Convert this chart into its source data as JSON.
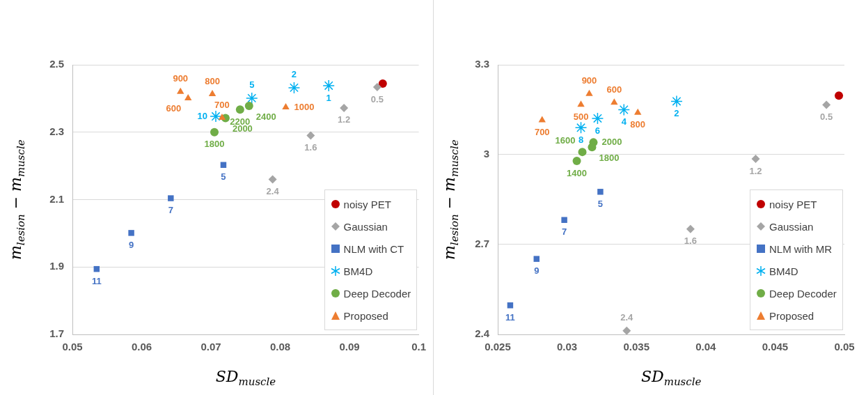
{
  "chart_data": [
    {
      "type": "scatter",
      "xlabel": "SD$_{muscle}$",
      "ylabel": "m$_{lesion}$ − m$_{muscle}$",
      "xlim": [
        0.05,
        0.1
      ],
      "xticks": [
        0.05,
        0.06,
        0.07,
        0.08,
        0.09,
        0.1
      ],
      "ylim": [
        1.7,
        2.5
      ],
      "yticks": [
        1.7,
        1.9,
        2.1,
        2.3,
        2.5
      ],
      "grid": "y",
      "legend": "bottom right",
      "series": [
        {
          "name": "noisy PET",
          "color": "#c00000",
          "marker": "circle",
          "x": [
            0.0948
          ],
          "values": [
            2.444
          ]
        },
        {
          "name": "Gaussian",
          "color": "#a5a5a5",
          "marker": "diamond",
          "x": [
            0.094,
            0.0892,
            0.0844,
            0.0789
          ],
          "values": [
            2.434,
            2.372,
            2.29,
            2.16
          ]
        },
        {
          "name": "NLM with CT",
          "color": "#4472c4",
          "marker": "square",
          "x": [
            0.0535,
            0.0585,
            0.0642,
            0.0718
          ],
          "values": [
            1.894,
            2.001,
            2.104,
            2.203
          ]
        },
        {
          "name": "BM4D",
          "color": "#00b0f0",
          "marker": "cross",
          "x": [
            0.087,
            0.082,
            0.0759,
            0.0707
          ],
          "values": [
            2.438,
            2.432,
            2.401,
            2.347
          ]
        },
        {
          "name": "Deep Decoder",
          "color": "#70ad47",
          "marker": "circle",
          "x": [
            0.0705,
            0.0721,
            0.0742,
            0.0755
          ],
          "values": [
            2.3,
            2.342,
            2.367,
            2.378
          ]
        },
        {
          "name": "Proposed",
          "color": "#ed7d31",
          "marker": "triangle",
          "x": [
            0.0656,
            0.0667,
            0.0702,
            0.0716,
            0.0808
          ],
          "values": [
            2.42,
            2.401,
            2.413,
            2.343,
            2.374
          ]
        }
      ],
      "annotations": [
        {
          "text": "0.5",
          "x": 0.094,
          "y": 2.434
        },
        {
          "text": "1.2",
          "x": 0.0892,
          "y": 2.372
        },
        {
          "text": "1.6",
          "x": 0.0844,
          "y": 2.29
        },
        {
          "text": "2.4",
          "x": 0.0789,
          "y": 2.16
        },
        {
          "text": "11",
          "x": 0.0535,
          "y": 1.894
        },
        {
          "text": "9",
          "x": 0.0585,
          "y": 2.001
        },
        {
          "text": "7",
          "x": 0.0642,
          "y": 2.104
        },
        {
          "text": "5",
          "x": 0.0718,
          "y": 2.203
        },
        {
          "text": "1",
          "x": 0.087,
          "y": 2.438
        },
        {
          "text": "2",
          "x": 0.082,
          "y": 2.432
        },
        {
          "text": "5",
          "x": 0.0759,
          "y": 2.401
        },
        {
          "text": "10",
          "x": 0.0707,
          "y": 2.347
        },
        {
          "text": "1800",
          "x": 0.0705,
          "y": 2.3
        },
        {
          "text": "2000",
          "x": 0.0721,
          "y": 2.342
        },
        {
          "text": "2200",
          "x": 0.0742,
          "y": 2.367
        },
        {
          "text": "2400",
          "x": 0.0755,
          "y": 2.378
        },
        {
          "text": "900",
          "x": 0.0656,
          "y": 2.42
        },
        {
          "text": "600",
          "x": 0.0667,
          "y": 2.401
        },
        {
          "text": "800",
          "x": 0.0702,
          "y": 2.413
        },
        {
          "text": "700",
          "x": 0.0716,
          "y": 2.343
        },
        {
          "text": "1000",
          "x": 0.0808,
          "y": 2.374
        }
      ]
    },
    {
      "type": "scatter",
      "xlabel": "SD$_{muscle}$",
      "ylabel": "m$_{lesion}$ − m$_{muscle}$",
      "xlim": [
        0.025,
        0.05
      ],
      "xticks": [
        0.025,
        0.03,
        0.035,
        0.04,
        0.045,
        0.05
      ],
      "ylim": [
        2.4,
        3.3
      ],
      "yticks": [
        2.4,
        2.7,
        3,
        3.3
      ],
      "grid": "y",
      "legend": "bottom right",
      "series": [
        {
          "name": "noisy PET",
          "color": "#c00000",
          "marker": "circle",
          "x": [
            0.0496
          ],
          "values": [
            3.197
          ]
        },
        {
          "name": "Gaussian",
          "color": "#a5a5a5",
          "marker": "diamond",
          "x": [
            0.0487,
            0.0436,
            0.0389,
            0.0343
          ],
          "values": [
            3.166,
            2.986,
            2.752,
            2.412
          ]
        },
        {
          "name": "NLM with MR",
          "color": "#4472c4",
          "marker": "square",
          "x": [
            0.0259,
            0.0278,
            0.0298,
            0.0324
          ],
          "values": [
            2.497,
            2.652,
            2.782,
            2.876
          ]
        },
        {
          "name": "BM4D",
          "color": "#00b0f0",
          "marker": "cross",
          "x": [
            0.0379,
            0.0341,
            0.0322,
            0.031
          ],
          "values": [
            3.178,
            3.15,
            3.121,
            3.09
          ]
        },
        {
          "name": "Deep Decoder",
          "color": "#70ad47",
          "marker": "circle",
          "x": [
            0.0319,
            0.0318,
            0.0311,
            0.0307
          ],
          "values": [
            3.041,
            3.025,
            3.009,
            2.979
          ]
        },
        {
          "name": "Proposed",
          "color": "#ed7d31",
          "marker": "triangle",
          "x": [
            0.0282,
            0.031,
            0.0316,
            0.0334,
            0.0351
          ],
          "values": [
            3.115,
            3.167,
            3.203,
            3.174,
            3.14
          ]
        }
      ],
      "annotations": [
        {
          "text": "0.5",
          "x": 0.0487,
          "y": 3.166
        },
        {
          "text": "1.2",
          "x": 0.0436,
          "y": 2.986
        },
        {
          "text": "1.6",
          "x": 0.0389,
          "y": 2.752
        },
        {
          "text": "2.4",
          "x": 0.0343,
          "y": 2.412
        },
        {
          "text": "11",
          "x": 0.0259,
          "y": 2.497
        },
        {
          "text": "9",
          "x": 0.0278,
          "y": 2.652
        },
        {
          "text": "7",
          "x": 0.0298,
          "y": 2.782
        },
        {
          "text": "5",
          "x": 0.0324,
          "y": 2.876
        },
        {
          "text": "2",
          "x": 0.0379,
          "y": 3.178
        },
        {
          "text": "4",
          "x": 0.0341,
          "y": 3.15
        },
        {
          "text": "6",
          "x": 0.0322,
          "y": 3.121
        },
        {
          "text": "8",
          "x": 0.031,
          "y": 3.09
        },
        {
          "text": "2000",
          "x": 0.0319,
          "y": 3.041
        },
        {
          "text": "1800",
          "x": 0.0318,
          "y": 3.025
        },
        {
          "text": "1600",
          "x": 0.0311,
          "y": 3.009
        },
        {
          "text": "1400",
          "x": 0.0307,
          "y": 2.979
        },
        {
          "text": "700",
          "x": 0.0282,
          "y": 3.115
        },
        {
          "text": "500",
          "x": 0.031,
          "y": 3.167
        },
        {
          "text": "900",
          "x": 0.0316,
          "y": 3.203
        },
        {
          "text": "600",
          "x": 0.0334,
          "y": 3.174
        },
        {
          "text": "800",
          "x": 0.0351,
          "y": 3.14
        }
      ]
    }
  ]
}
